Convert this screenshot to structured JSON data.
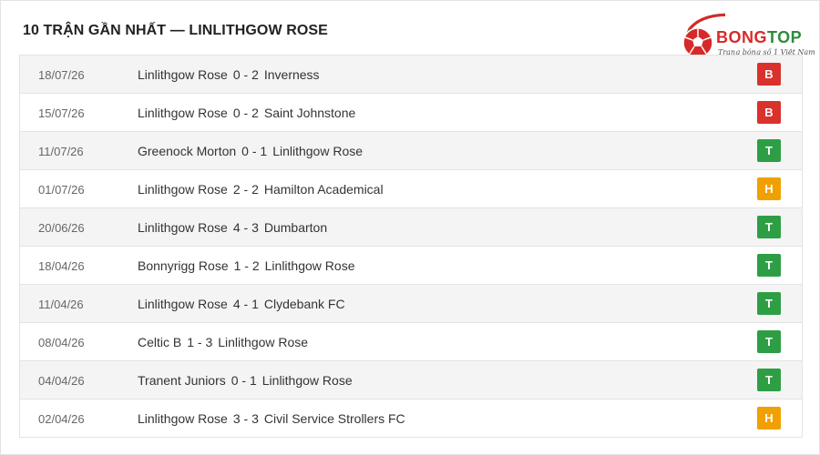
{
  "title": "10 TRẬN GẦN NHẤT — LINLITHGOW ROSE",
  "logo": {
    "brand_part1": "BONG",
    "brand_part2": "TOP",
    "tagline": "Trang bóng số 1 Việt Nam",
    "colors": {
      "red": "#d62a2a",
      "green": "#2e8b3d"
    }
  },
  "result_colors": {
    "B": "#d9312b",
    "T": "#2e9e44",
    "H": "#f0a000"
  },
  "matches": [
    {
      "date": "18/07/26",
      "home": "Linlithgow Rose",
      "score": "0 - 2",
      "away": "Inverness",
      "result": "B"
    },
    {
      "date": "15/07/26",
      "home": "Linlithgow Rose",
      "score": "0 - 2",
      "away": "Saint Johnstone",
      "result": "B"
    },
    {
      "date": "11/07/26",
      "home": "Greenock Morton",
      "score": "0 - 1",
      "away": "Linlithgow Rose",
      "result": "T"
    },
    {
      "date": "01/07/26",
      "home": "Linlithgow Rose",
      "score": "2 - 2",
      "away": "Hamilton Academical",
      "result": "H"
    },
    {
      "date": "20/06/26",
      "home": "Linlithgow Rose",
      "score": "4 - 3",
      "away": "Dumbarton",
      "result": "T"
    },
    {
      "date": "18/04/26",
      "home": "Bonnyrigg Rose",
      "score": "1 - 2",
      "away": "Linlithgow Rose",
      "result": "T"
    },
    {
      "date": "11/04/26",
      "home": "Linlithgow Rose",
      "score": "4 - 1",
      "away": "Clydebank FC",
      "result": "T"
    },
    {
      "date": "08/04/26",
      "home": "Celtic B",
      "score": "1 - 3",
      "away": "Linlithgow Rose",
      "result": "T"
    },
    {
      "date": "04/04/26",
      "home": "Tranent Juniors",
      "score": "0 - 1",
      "away": "Linlithgow Rose",
      "result": "T"
    },
    {
      "date": "02/04/26",
      "home": "Linlithgow Rose",
      "score": "3 - 3",
      "away": "Civil Service Strollers FC",
      "result": "H"
    }
  ]
}
